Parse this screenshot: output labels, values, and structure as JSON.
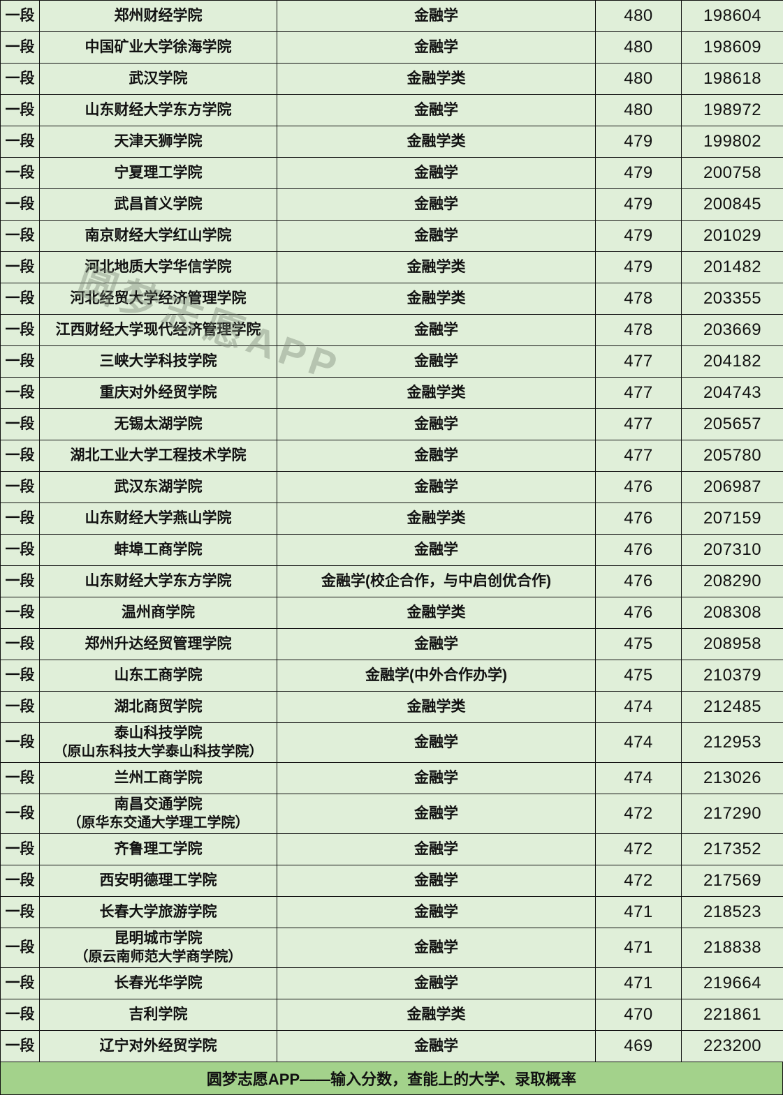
{
  "colors": {
    "cell_bg": "#e0efd9",
    "footer_bg": "#a3d28b",
    "border": "#111111",
    "watermark_gray": "rgba(125,135,120,0.42)"
  },
  "watermark": {
    "text": "圆梦志愿APP"
  },
  "footer": {
    "text": "圆梦志愿APP——输入分数，查能上的大学、录取概率"
  },
  "table": {
    "rows": [
      {
        "tier": "一段",
        "university": "郑州财经学院",
        "major": "金融学",
        "score": "480",
        "rank": "198604"
      },
      {
        "tier": "一段",
        "university": "中国矿业大学徐海学院",
        "major": "金融学",
        "score": "480",
        "rank": "198609"
      },
      {
        "tier": "一段",
        "university": "武汉学院",
        "major": "金融学类",
        "score": "480",
        "rank": "198618"
      },
      {
        "tier": "一段",
        "university": "山东财经大学东方学院",
        "major": "金融学",
        "score": "480",
        "rank": "198972"
      },
      {
        "tier": "一段",
        "university": "天津天狮学院",
        "major": "金融学类",
        "score": "479",
        "rank": "199802"
      },
      {
        "tier": "一段",
        "university": "宁夏理工学院",
        "major": "金融学",
        "score": "479",
        "rank": "200758"
      },
      {
        "tier": "一段",
        "university": "武昌首义学院",
        "major": "金融学",
        "score": "479",
        "rank": "200845"
      },
      {
        "tier": "一段",
        "university": "南京财经大学红山学院",
        "major": "金融学",
        "score": "479",
        "rank": "201029"
      },
      {
        "tier": "一段",
        "university": "河北地质大学华信学院",
        "major": "金融学类",
        "score": "479",
        "rank": "201482"
      },
      {
        "tier": "一段",
        "university": "河北经贸大学经济管理学院",
        "major": "金融学类",
        "score": "478",
        "rank": "203355"
      },
      {
        "tier": "一段",
        "university": "江西财经大学现代经济管理学院",
        "major": "金融学",
        "score": "478",
        "rank": "203669"
      },
      {
        "tier": "一段",
        "university": "三峡大学科技学院",
        "major": "金融学",
        "score": "477",
        "rank": "204182"
      },
      {
        "tier": "一段",
        "university": "重庆对外经贸学院",
        "major": "金融学类",
        "score": "477",
        "rank": "204743"
      },
      {
        "tier": "一段",
        "university": "无锡太湖学院",
        "major": "金融学",
        "score": "477",
        "rank": "205657"
      },
      {
        "tier": "一段",
        "university": "湖北工业大学工程技术学院",
        "major": "金融学",
        "score": "477",
        "rank": "205780"
      },
      {
        "tier": "一段",
        "university": "武汉东湖学院",
        "major": "金融学",
        "score": "476",
        "rank": "206987"
      },
      {
        "tier": "一段",
        "university": "山东财经大学燕山学院",
        "major": "金融学类",
        "score": "476",
        "rank": "207159"
      },
      {
        "tier": "一段",
        "university": "蚌埠工商学院",
        "major": "金融学",
        "score": "476",
        "rank": "207310"
      },
      {
        "tier": "一段",
        "university": "山东财经大学东方学院",
        "major": "金融学(校企合作，与中启创优合作)",
        "score": "476",
        "rank": "208290"
      },
      {
        "tier": "一段",
        "university": "温州商学院",
        "major": "金融学类",
        "score": "476",
        "rank": "208308"
      },
      {
        "tier": "一段",
        "university": "郑州升达经贸管理学院",
        "major": "金融学",
        "score": "475",
        "rank": "208958"
      },
      {
        "tier": "一段",
        "university": "山东工商学院",
        "major": "金融学(中外合作办学)",
        "score": "475",
        "rank": "210379"
      },
      {
        "tier": "一段",
        "university": "湖北商贸学院",
        "major": "金融学类",
        "score": "474",
        "rank": "212485"
      },
      {
        "tier": "一段",
        "university": "泰山科技学院",
        "university_note": "（原山东科技大学泰山科技学院）",
        "major": "金融学",
        "score": "474",
        "rank": "212953"
      },
      {
        "tier": "一段",
        "university": "兰州工商学院",
        "major": "金融学",
        "score": "474",
        "rank": "213026"
      },
      {
        "tier": "一段",
        "university": "南昌交通学院",
        "university_note": "（原华东交通大学理工学院）",
        "major": "金融学",
        "score": "472",
        "rank": "217290"
      },
      {
        "tier": "一段",
        "university": "齐鲁理工学院",
        "major": "金融学",
        "score": "472",
        "rank": "217352"
      },
      {
        "tier": "一段",
        "university": "西安明德理工学院",
        "major": "金融学",
        "score": "472",
        "rank": "217569"
      },
      {
        "tier": "一段",
        "university": "长春大学旅游学院",
        "major": "金融学",
        "score": "471",
        "rank": "218523"
      },
      {
        "tier": "一段",
        "university": "昆明城市学院",
        "university_note": "（原云南师范大学商学院）",
        "major": "金融学",
        "score": "471",
        "rank": "218838"
      },
      {
        "tier": "一段",
        "university": "长春光华学院",
        "major": "金融学",
        "score": "471",
        "rank": "219664"
      },
      {
        "tier": "一段",
        "university": "吉利学院",
        "major": "金融学类",
        "score": "470",
        "rank": "221861"
      },
      {
        "tier": "一段",
        "university": "辽宁对外经贸学院",
        "major": "金融学",
        "score": "469",
        "rank": "223200"
      }
    ]
  }
}
